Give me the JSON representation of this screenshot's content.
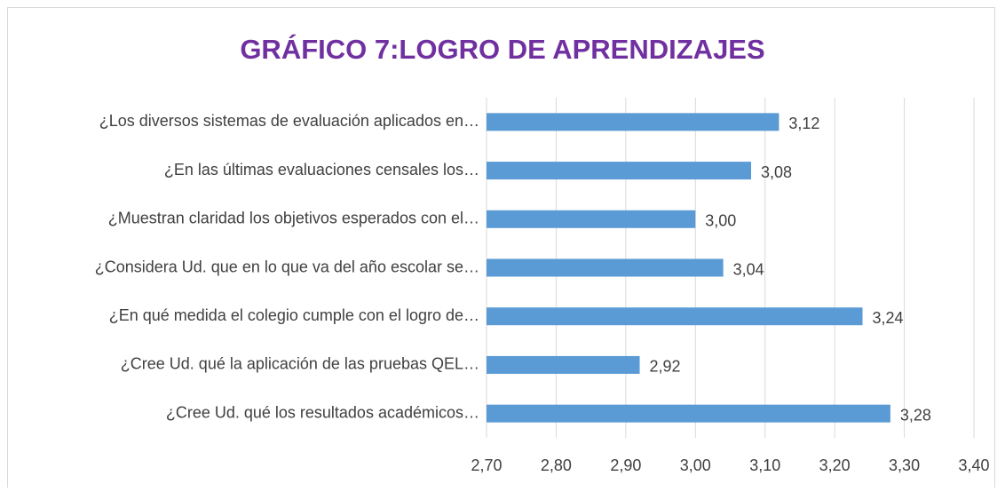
{
  "chart_data": {
    "type": "bar",
    "orientation": "horizontal",
    "title": "GRÁFICO 7:LOGRO DE APRENDIZAJES",
    "categories": [
      "¿Los diversos sistemas de evaluación aplicados en…",
      "¿En  las últimas evaluaciones censales los…",
      "¿Muestran claridad los objetivos esperados con el…",
      "¿Considera Ud. que en lo que va  del año escolar se…",
      "¿En qué medida el colegio cumple con el logro de…",
      "¿Cree Ud. qué la aplicación de las pruebas QEL…",
      "¿Cree Ud. qué los resultados académicos…"
    ],
    "values": [
      3.12,
      3.08,
      3.0,
      3.04,
      3.24,
      2.92,
      3.28
    ],
    "value_labels": [
      "3,12",
      "3,08",
      "3,00",
      "3,04",
      "3,24",
      "2,92",
      "3,28"
    ],
    "color": "#5b9bd5",
    "xlim": [
      2.7,
      3.4
    ],
    "xticks": [
      {
        "value": 2.7,
        "label": "2,70"
      },
      {
        "value": 2.8,
        "label": "2,80"
      },
      {
        "value": 2.9,
        "label": "2,90"
      },
      {
        "value": 3.0,
        "label": "3,00"
      },
      {
        "value": 3.1,
        "label": "3,10"
      },
      {
        "value": 3.2,
        "label": "3,20"
      },
      {
        "value": 3.3,
        "label": "3,30"
      },
      {
        "value": 3.4,
        "label": "3,40"
      }
    ],
    "grid": true
  }
}
